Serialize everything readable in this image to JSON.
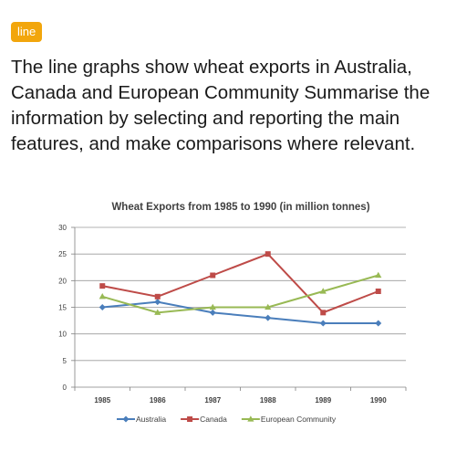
{
  "tag": {
    "label": "line",
    "color": "#f2a60c"
  },
  "prompt": {
    "text": "The line graphs show wheat exports in Australia, Canada and European Community  Summarise the information by selecting and reporting the main features, and make comparisons where relevant."
  },
  "chart_data": {
    "type": "line",
    "title": "Wheat Exports from 1985 to 1990 (in million tonnes)",
    "xlabel": "",
    "ylabel": "",
    "categories": [
      "1985",
      "1986",
      "1987",
      "1988",
      "1989",
      "1990"
    ],
    "ylim": [
      0,
      30
    ],
    "yticks": [
      0,
      5,
      10,
      15,
      20,
      25,
      30
    ],
    "grid": true,
    "legend_position": "bottom",
    "series": [
      {
        "name": "Australia",
        "values": [
          15,
          16,
          14,
          13,
          12,
          12
        ],
        "color": "#4a7ebb",
        "marker": "diamond"
      },
      {
        "name": "Canada",
        "values": [
          19,
          17,
          21,
          25,
          14,
          18
        ],
        "color": "#be4b48",
        "marker": "square"
      },
      {
        "name": "European Community",
        "values": [
          17,
          14,
          15,
          15,
          18,
          21
        ],
        "color": "#98b954",
        "marker": "triangle"
      }
    ]
  }
}
